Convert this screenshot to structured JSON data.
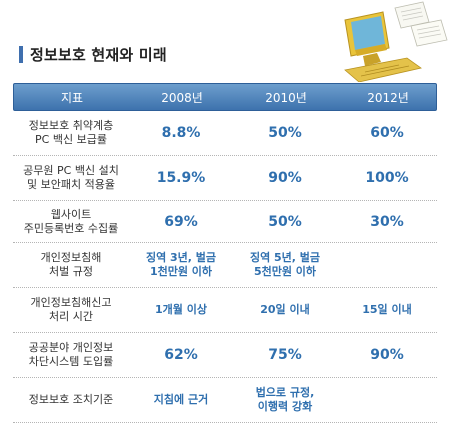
{
  "title": "정보보호 현재와 미래",
  "header": [
    "지표",
    "2008년",
    "2010년",
    "2012년"
  ],
  "rows": [
    {
      "label": [
        "정보보호 취약계층",
        "PC 백신 보급률"
      ],
      "v2008": [
        "8.8%"
      ],
      "v2010": [
        "50%"
      ],
      "v2012": [
        "60%"
      ],
      "big": true
    },
    {
      "label": [
        "공무원 PC 백신 설치",
        "및 보안패치 적용율"
      ],
      "v2008": [
        "15.9%"
      ],
      "v2010": [
        "90%"
      ],
      "v2012": [
        "100%"
      ],
      "big": true
    },
    {
      "label": [
        "웹사이트",
        "주민등록번호 수집률"
      ],
      "v2008": [
        "69%"
      ],
      "v2010": [
        "50%"
      ],
      "v2012": [
        "30%"
      ],
      "big": true
    },
    {
      "label": [
        "개인정보침해",
        "처벌 규정"
      ],
      "v2008": [
        "징역 3년, 벌금",
        "1천만원 이하"
      ],
      "v2010": [
        "징역 5년, 벌금",
        "5천만원 이하"
      ],
      "v2012": [
        ""
      ],
      "big": false
    },
    {
      "label": [
        "개인정보침해신고",
        "처리 시간"
      ],
      "v2008": [
        "1개월 이상"
      ],
      "v2010": [
        "20일 이내"
      ],
      "v2012": [
        "15일 이내"
      ],
      "big": false
    },
    {
      "label": [
        "공공분야 개인정보",
        "차단시스템 도입률"
      ],
      "v2008": [
        "62%"
      ],
      "v2010": [
        "75%"
      ],
      "v2012": [
        "90%"
      ],
      "big": true
    },
    {
      "label": [
        "정보보호 조치기준"
      ],
      "v2008": [
        "지침에 근거"
      ],
      "v2010": [
        "법으로 규정,",
        "이행력 강화"
      ],
      "v2012": [
        ""
      ],
      "big": false
    }
  ],
  "colors": {
    "accent": "#3f6fae",
    "value": "#2f6fae",
    "header_bg": "#4f84bd"
  },
  "icons": {
    "decoration": "computer-with-documents-icon"
  }
}
